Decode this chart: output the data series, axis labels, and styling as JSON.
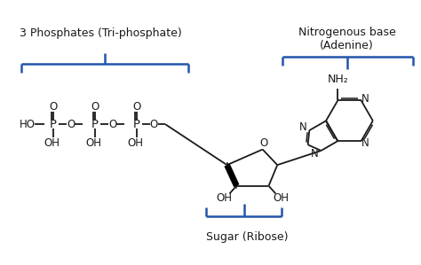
{
  "bg_color": "#ffffff",
  "line_color": "#1a1a1a",
  "blue_color": "#2255aa",
  "label_phosphate": "3 Phosphates (Tri-phosphate)",
  "label_base": "Nitrogenous base\n(Adenine)",
  "label_sugar": "Sugar (Ribose)",
  "font_size_label": 9,
  "font_size_atom": 8.5
}
